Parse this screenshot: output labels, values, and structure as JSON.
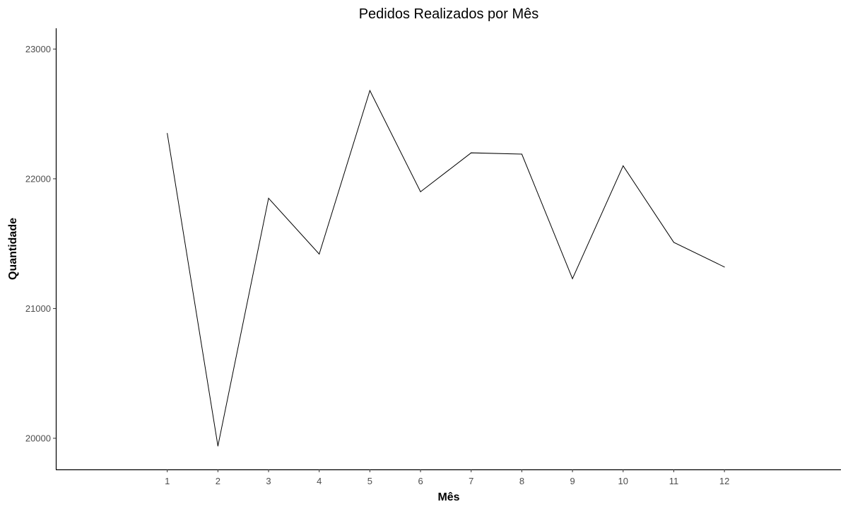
{
  "chart_data": {
    "type": "line",
    "title": "Pedidos Realizados por Mês",
    "xlabel": "Mês",
    "ylabel": "Quantidade",
    "x": [
      1,
      2,
      3,
      4,
      5,
      6,
      7,
      8,
      9,
      10,
      11,
      12
    ],
    "x_tick_labels": [
      "1",
      "2",
      "3",
      "4",
      "5",
      "6",
      "7",
      "8",
      "9",
      "10",
      "11",
      "12"
    ],
    "series": [
      {
        "values": [
          22350,
          19940,
          21850,
          21420,
          22680,
          21900,
          22200,
          22190,
          21230,
          22100,
          21510,
          21320
        ],
        "color": "#000000"
      }
    ],
    "y_ticks": [
      20000,
      21000,
      22000,
      23000
    ],
    "y_tick_labels": [
      "20000",
      "21000",
      "22000",
      "23000"
    ],
    "xlim": [
      -1.2,
      14.3
    ],
    "ylim": [
      19760,
      23160
    ],
    "grid": false,
    "legend": "none"
  }
}
